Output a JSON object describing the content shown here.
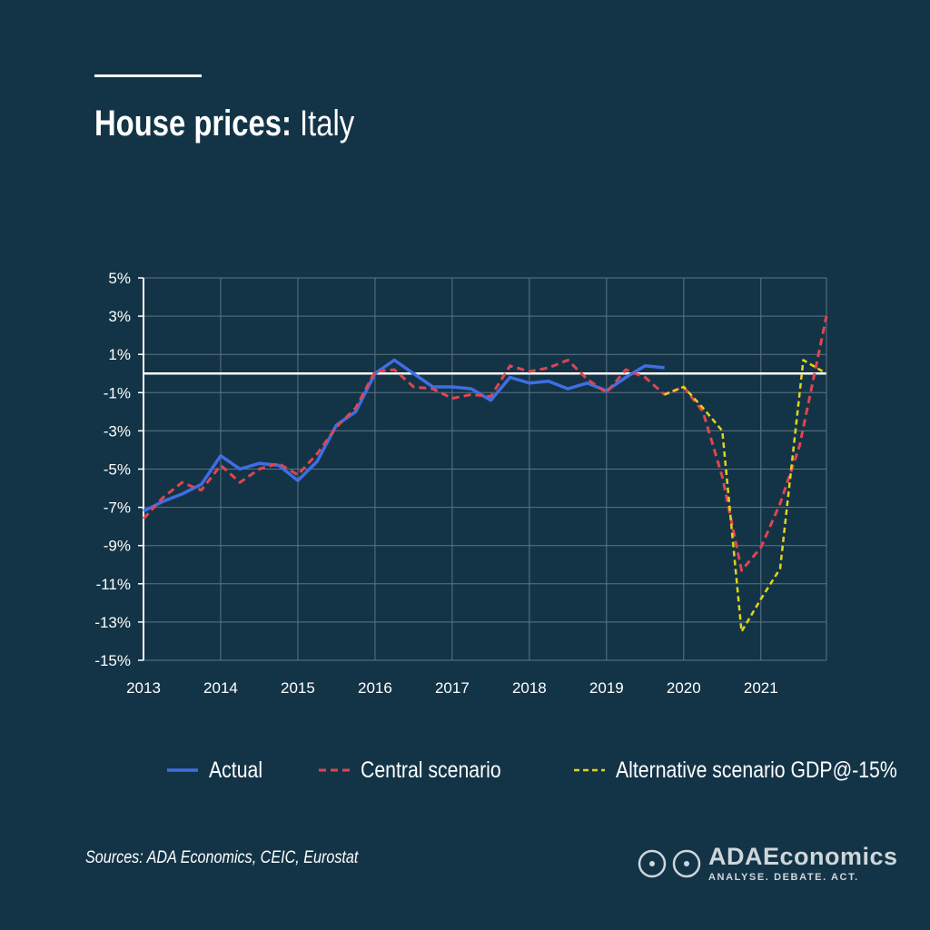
{
  "header": {
    "title_bold": "House prices:",
    "title_regular": "Italy"
  },
  "footer": {
    "source": "Sources: ADA Economics, CEIC, Eurostat"
  },
  "logo": {
    "name": "ADAEconomics",
    "tagline": "ANALYSE. DEBATE. ACT."
  },
  "colors": {
    "background": "#133447",
    "actual": "#3f6ee3",
    "central": "#e0454f",
    "alternative": "#e2d41a",
    "grid": "#5d7583",
    "axis": "#ffffff"
  },
  "chart_data": {
    "type": "line",
    "title": "House prices: Italy",
    "xlabel": "",
    "ylabel": "",
    "x_ticks": [
      "2013",
      "2014",
      "2015",
      "2016",
      "2017",
      "2018",
      "2019",
      "2020",
      "2021"
    ],
    "xlim": [
      2013.0,
      2021.85
    ],
    "y_ticks": [
      "5%",
      "3%",
      "1%",
      "-1%",
      "-3%",
      "-5%",
      "-7%",
      "-9%",
      "-11%",
      "-13%",
      "-15%"
    ],
    "ylim": [
      -15,
      5
    ],
    "grid": true,
    "zero_line": true,
    "legend_position": "bottom",
    "series": [
      {
        "name": "Actual",
        "style": "solid",
        "color": "#3f6ee3",
        "points": [
          [
            2013.0,
            -7.2
          ],
          [
            2013.25,
            -6.7
          ],
          [
            2013.5,
            -6.3
          ],
          [
            2013.75,
            -5.8
          ],
          [
            2014.0,
            -4.3
          ],
          [
            2014.25,
            -5.0
          ],
          [
            2014.5,
            -4.7
          ],
          [
            2014.75,
            -4.8
          ],
          [
            2015.0,
            -5.6
          ],
          [
            2015.25,
            -4.6
          ],
          [
            2015.5,
            -2.7
          ],
          [
            2015.75,
            -2.0
          ],
          [
            2016.0,
            0.0
          ],
          [
            2016.25,
            0.7
          ],
          [
            2016.5,
            0.0
          ],
          [
            2016.75,
            -0.7
          ],
          [
            2017.0,
            -0.7
          ],
          [
            2017.25,
            -0.8
          ],
          [
            2017.5,
            -1.4
          ],
          [
            2017.75,
            -0.2
          ],
          [
            2018.0,
            -0.5
          ],
          [
            2018.25,
            -0.4
          ],
          [
            2018.5,
            -0.8
          ],
          [
            2018.75,
            -0.5
          ],
          [
            2019.0,
            -0.9
          ],
          [
            2019.25,
            -0.2
          ],
          [
            2019.5,
            0.4
          ],
          [
            2019.75,
            0.3
          ]
        ]
      },
      {
        "name": "Central scenario",
        "style": "dashed",
        "color": "#e0454f",
        "points": [
          [
            2013.0,
            -7.6
          ],
          [
            2013.25,
            -6.5
          ],
          [
            2013.5,
            -5.7
          ],
          [
            2013.75,
            -6.1
          ],
          [
            2014.0,
            -4.8
          ],
          [
            2014.25,
            -5.7
          ],
          [
            2014.5,
            -5.0
          ],
          [
            2014.75,
            -4.7
          ],
          [
            2015.0,
            -5.3
          ],
          [
            2015.25,
            -4.2
          ],
          [
            2015.5,
            -2.8
          ],
          [
            2015.75,
            -1.8
          ],
          [
            2016.0,
            0.1
          ],
          [
            2016.25,
            0.2
          ],
          [
            2016.5,
            -0.7
          ],
          [
            2016.75,
            -0.8
          ],
          [
            2017.0,
            -1.3
          ],
          [
            2017.25,
            -1.1
          ],
          [
            2017.5,
            -1.2
          ],
          [
            2017.75,
            0.4
          ],
          [
            2018.0,
            0.1
          ],
          [
            2018.25,
            0.3
          ],
          [
            2018.5,
            0.7
          ],
          [
            2018.75,
            -0.3
          ],
          [
            2019.0,
            -1.0
          ],
          [
            2019.25,
            0.2
          ],
          [
            2019.5,
            -0.2
          ],
          [
            2019.75,
            -1.1
          ],
          [
            2020.0,
            -0.7
          ],
          [
            2020.25,
            -2.0
          ],
          [
            2020.5,
            -5.4
          ],
          [
            2020.75,
            -10.3
          ],
          [
            2021.0,
            -9.1
          ],
          [
            2021.25,
            -6.8
          ],
          [
            2021.5,
            -3.8
          ],
          [
            2021.85,
            3.0
          ]
        ]
      },
      {
        "name": "Alternative scenario GDP@-15%",
        "style": "dashed",
        "color": "#e2d41a",
        "points": [
          [
            2019.75,
            -1.1
          ],
          [
            2020.0,
            -0.7
          ],
          [
            2020.25,
            -1.8
          ],
          [
            2020.5,
            -3.0
          ],
          [
            2020.75,
            -13.5
          ],
          [
            2021.0,
            -11.8
          ],
          [
            2021.25,
            -10.2
          ],
          [
            2021.55,
            0.7
          ],
          [
            2021.85,
            0.0
          ]
        ]
      }
    ]
  }
}
